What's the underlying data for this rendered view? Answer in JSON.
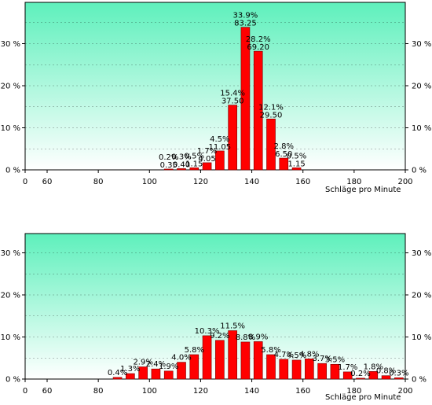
{
  "charts": {
    "xlabel": "Schläge pro Minute",
    "x_ticks": [
      "0",
      "60",
      "80",
      "100",
      "120",
      "140",
      "160",
      "180",
      "200"
    ],
    "y_ticks": [
      "0 %",
      "10 %",
      "20 %",
      "30 %"
    ]
  },
  "colors": {
    "bar": "#ff0000",
    "bar_edge": "#7a0000",
    "bg_top": "#5ef0bc",
    "bg_bottom": "#ffffff",
    "grid": "#000000"
  },
  "chart_data": [
    {
      "type": "bar",
      "title": "",
      "xlabel": "Schläge pro Minute",
      "ylabel": "",
      "xlim": [
        50,
        200
      ],
      "ylim": [
        0,
        37
      ],
      "grid": true,
      "bar_width": 4,
      "bars": [
        {
          "x": 107.5,
          "value": 0.2,
          "label": "0.2%",
          "label2": "0.35"
        },
        {
          "x": 112.5,
          "value": 0.3,
          "label": "0.3%",
          "label2": "0.40"
        },
        {
          "x": 117.5,
          "value": 0.5,
          "label": "0.5%",
          "label2": "1.15"
        },
        {
          "x": 122.5,
          "value": 1.7,
          "label": "1.7%",
          "label2": "4.05"
        },
        {
          "x": 127.5,
          "value": 4.5,
          "label": "4.5%",
          "label2": "11.05"
        },
        {
          "x": 132.5,
          "value": 15.4,
          "label": "15.4%",
          "label2": "37.50"
        },
        {
          "x": 137.5,
          "value": 33.9,
          "label": "33.9%",
          "label2": "83.25"
        },
        {
          "x": 142.5,
          "value": 28.2,
          "label": "28.2%",
          "label2": "69.20"
        },
        {
          "x": 147.5,
          "value": 12.1,
          "label": "12.1%",
          "label2": "29.50"
        },
        {
          "x": 152.5,
          "value": 2.8,
          "label": "2.8%",
          "label2": "6.50"
        },
        {
          "x": 157.5,
          "value": 0.5,
          "label": "0.5%",
          "label2": "1.15"
        }
      ]
    },
    {
      "type": "bar",
      "title": "",
      "xlabel": "Schläge pro Minute",
      "ylabel": "",
      "xlim": [
        50,
        200
      ],
      "ylim": [
        0,
        37
      ],
      "grid": true,
      "bar_width": 4,
      "bars": [
        {
          "x": 87.5,
          "value": 0.4,
          "label": "0.4%"
        },
        {
          "x": 92.5,
          "value": 1.3,
          "label": "1.3%"
        },
        {
          "x": 97.5,
          "value": 2.9,
          "label": "2.9%"
        },
        {
          "x": 102.5,
          "value": 2.4,
          "label": "2.4%"
        },
        {
          "x": 107.5,
          "value": 1.9,
          "label": "1.9%"
        },
        {
          "x": 112.5,
          "value": 4.0,
          "label": "4.0%"
        },
        {
          "x": 117.5,
          "value": 5.8,
          "label": "5.8%"
        },
        {
          "x": 122.5,
          "value": 10.3,
          "label": "10.3%"
        },
        {
          "x": 127.5,
          "value": 9.2,
          "label": "9.2%"
        },
        {
          "x": 132.5,
          "value": 11.5,
          "label": "11.5%"
        },
        {
          "x": 137.5,
          "value": 8.8,
          "label": "8.8%"
        },
        {
          "x": 142.5,
          "value": 8.9,
          "label": "8.9%"
        },
        {
          "x": 147.5,
          "value": 5.8,
          "label": "5.8%"
        },
        {
          "x": 152.5,
          "value": 4.7,
          "label": "4.7%"
        },
        {
          "x": 157.5,
          "value": 4.5,
          "label": "4.5%"
        },
        {
          "x": 162.5,
          "value": 4.8,
          "label": "4.8%"
        },
        {
          "x": 167.5,
          "value": 3.7,
          "label": "3.7%"
        },
        {
          "x": 172.5,
          "value": 3.5,
          "label": "3.5%"
        },
        {
          "x": 177.5,
          "value": 1.7,
          "label": "1.7%"
        },
        {
          "x": 182.5,
          "value": 0.2,
          "label": "0.2%"
        },
        {
          "x": 187.5,
          "value": 1.8,
          "label": "1.8%"
        },
        {
          "x": 192.5,
          "value": 0.8,
          "label": "0.8%"
        },
        {
          "x": 197.5,
          "value": 0.3,
          "label": "0.3%"
        }
      ]
    }
  ]
}
